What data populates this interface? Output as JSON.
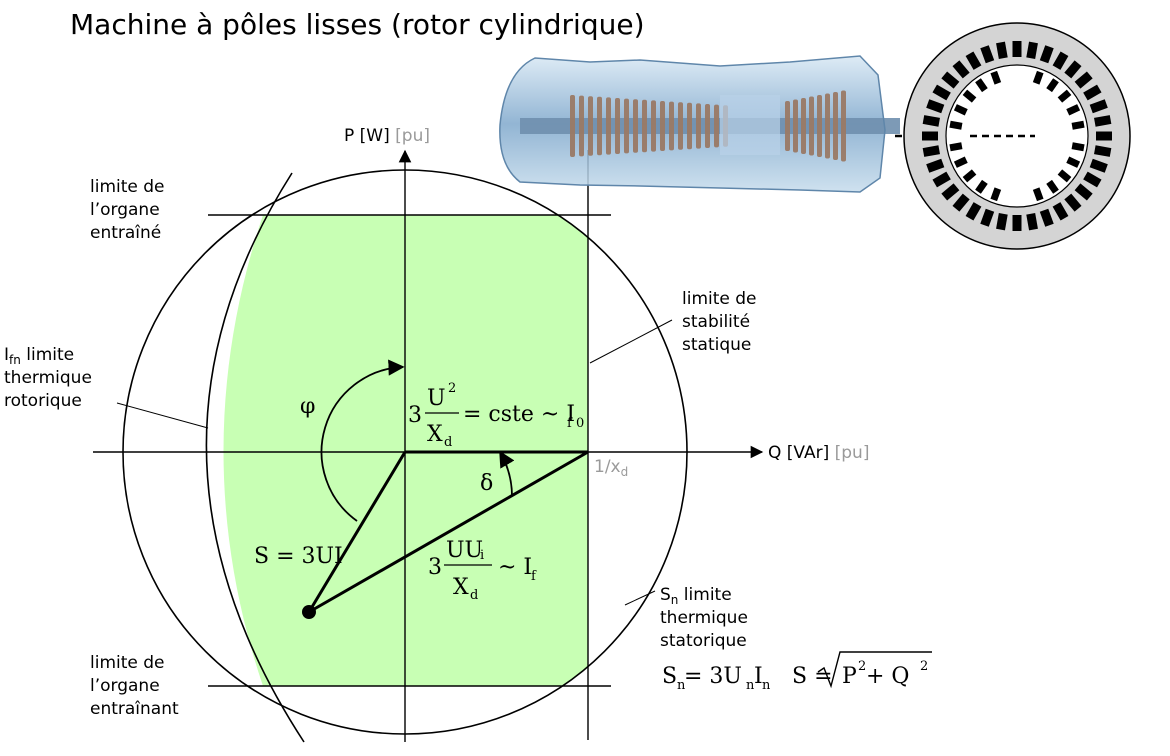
{
  "title": "Machine à pôles lisses (rotor cylindrique)",
  "axes": {
    "p_label": "P [W]",
    "p_unit": "[pu]",
    "q_label": "Q [VAr]",
    "q_unit": "[pu]",
    "inv_xd": "1/x",
    "inv_xd_sub": "d"
  },
  "labels": {
    "organe_entraine": [
      "limite de",
      "l’organe",
      "entraîné"
    ],
    "organe_entrainant": [
      "limite de",
      "l’organe",
      "entraînant"
    ],
    "stabilite": [
      "limite de",
      "stabilité",
      "statique"
    ],
    "ifn_sym": "I",
    "ifn_sub": "fn",
    "ifn_rest": " limite",
    "ifn_lines": [
      "thermique",
      "rotorique"
    ],
    "sn_sym": "S",
    "sn_sub": "n",
    "sn_rest": " limite",
    "sn_lines": [
      "thermique",
      "statorique"
    ]
  },
  "formulas": {
    "phi": "φ",
    "delta": "δ",
    "s3ui": "S = 3UI",
    "f1": {
      "coef": "3",
      "num": "U",
      "num_sup": "2",
      "den": "X",
      "den_sub": "d",
      "rhs": "= cste ~ I",
      "rhs_sub": "f 0"
    },
    "f2": {
      "coef": "3",
      "num": "UU",
      "num_sub": "i",
      "den": "X",
      "den_sub": "d",
      "rhs": "~ I",
      "rhs_sub": "f"
    },
    "sn": {
      "lhs": "S",
      "lhs_sub": "n",
      "eq": " = 3U",
      "u_sub": "n",
      "i": "I",
      "i_sub": "n"
    },
    "s": {
      "lhs": "S = ",
      "p": "P",
      "p_sup": "2",
      "plus": " + Q",
      "q_sup": "2"
    }
  },
  "colors": {
    "region_fill": "#c8ffb4",
    "cross_section_bg": "#d4d4d4",
    "turbine_blue": "#8fb6d8",
    "blades": "#9a7a66"
  }
}
